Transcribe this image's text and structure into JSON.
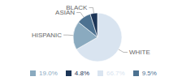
{
  "chart_data": {
    "type": "pie",
    "categories": [
      "WHITE",
      "HISPANIC",
      "ASIAN",
      "BLACK"
    ],
    "values": [
      66.7,
      19.0,
      9.5,
      4.8
    ],
    "value_labels": [
      "66.7%",
      "19.0%",
      "9.5%",
      "4.8%"
    ],
    "colors": [
      "#d9e4f0",
      "#8aaabf",
      "#4d7291",
      "#1c3557"
    ],
    "legend": "bottom"
  }
}
